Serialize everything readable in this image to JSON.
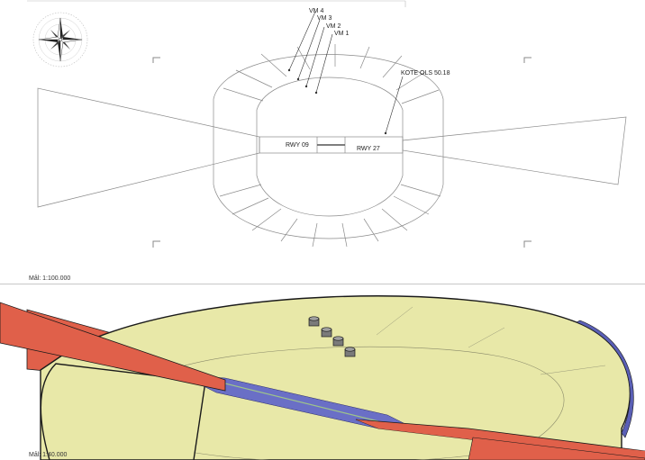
{
  "top_view": {
    "markers": [
      "VM 4",
      "VM 3",
      "VM 2",
      "VM 1"
    ],
    "kote_label": "KOTE OLS 50.18",
    "runway_west": "RWY 09",
    "runway_east": "RWY 27",
    "scale": "Mål: 1:100.000",
    "compass_icon": "compass-rose-icon"
  },
  "perspective_view": {
    "scale": "Mål: 1:40.000",
    "colors": {
      "inner_horizontal_surface": "#e8e8a8",
      "approach_surface": "#e0604a",
      "runway_strip": "#6a6fc6",
      "edge": "#1a1a1a",
      "marker": "#7a7a7a"
    }
  }
}
